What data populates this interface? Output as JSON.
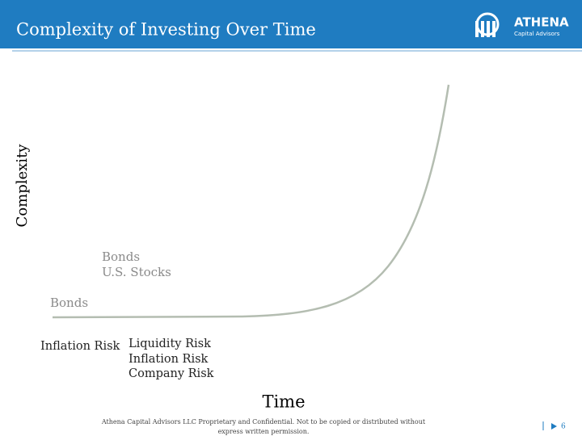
{
  "header": {
    "title": "Complexity of Investing Over Time",
    "logo": {
      "name": "ATHENA",
      "tagline": "Capital Advisors"
    }
  },
  "axes": {
    "y_label": "Complexity",
    "x_label": "Time"
  },
  "stages": [
    {
      "assets": [
        "Bonds"
      ],
      "risks": [
        "Inflation Risk"
      ]
    },
    {
      "assets": [
        "Bonds",
        "U.S. Stocks"
      ],
      "risks": [
        "Liquidity Risk",
        "Inflation Risk",
        "Company Risk"
      ]
    }
  ],
  "footer": {
    "lines": [
      "Athena Capital Advisors LLC Proprietary and Confidential.  Not to be copied or distributed without",
      "express written permission."
    ],
    "page": "6"
  }
}
